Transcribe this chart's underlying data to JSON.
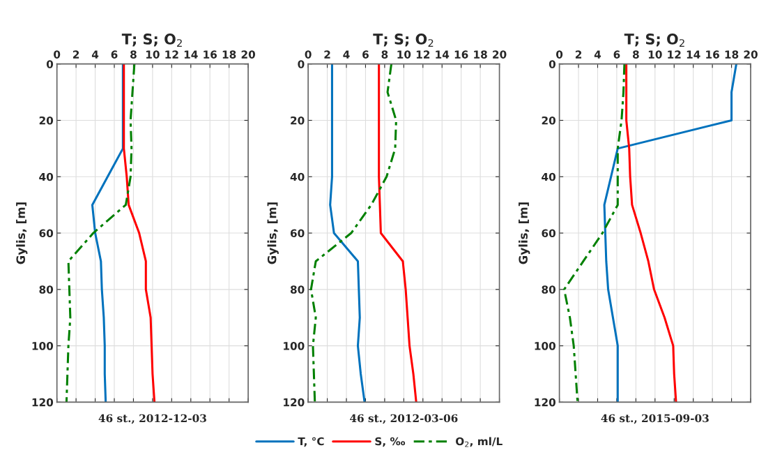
{
  "chart_data": [
    {
      "type": "line",
      "title": "46 st., 2012-12-03",
      "xlabel": "T; S; O$_{2}$",
      "ylabel": "Gylis, [m]",
      "xlim": [
        0,
        20
      ],
      "xticks": [
        0,
        2,
        4,
        6,
        8,
        10,
        12,
        14,
        16,
        18,
        20
      ],
      "ylim": [
        120,
        0
      ],
      "yticks": [
        0,
        20,
        40,
        60,
        80,
        100,
        120
      ],
      "grid": true,
      "legend": "bottom",
      "series": [
        {
          "name": "T, °C",
          "color": "#0072bd",
          "line_style": "solid",
          "x": [
            6.9,
            6.9,
            6.9,
            6.9,
            5.3,
            3.7,
            4.0,
            4.6,
            4.7,
            4.9,
            5.0,
            5.0,
            5.1
          ],
          "values": [
            0,
            10,
            20,
            30,
            40,
            50,
            60,
            70,
            80,
            90,
            100,
            110,
            120
          ]
        },
        {
          "name": "S, ‰",
          "color": "#ff0000",
          "line_style": "solid",
          "x": [
            7.0,
            7.0,
            7.0,
            7.0,
            7.3,
            7.5,
            8.6,
            9.3,
            9.3,
            9.8,
            9.9,
            10.0,
            10.2
          ],
          "values": [
            0,
            10,
            20,
            30,
            40,
            50,
            60,
            70,
            80,
            90,
            100,
            110,
            120
          ]
        },
        {
          "name": "O$_{2}$, ml/L",
          "color": "#008000",
          "line_style": "dashed",
          "x": [
            8.1,
            7.9,
            7.7,
            7.8,
            7.7,
            7.2,
            3.8,
            1.2,
            1.3,
            1.4,
            1.2,
            1.1,
            1.0
          ],
          "values": [
            0,
            10,
            20,
            30,
            40,
            50,
            60,
            70,
            80,
            90,
            100,
            110,
            120
          ]
        }
      ]
    },
    {
      "type": "line",
      "title": "46 st., 2012-03-06",
      "xlabel": "T; S; O$_{2}$",
      "ylabel": "Gylis, [m]",
      "xlim": [
        0,
        20
      ],
      "xticks": [
        0,
        2,
        4,
        6,
        8,
        10,
        12,
        14,
        16,
        18,
        20
      ],
      "ylim": [
        120,
        0
      ],
      "yticks": [
        0,
        20,
        40,
        60,
        80,
        100,
        120
      ],
      "grid": true,
      "series": [
        {
          "color": "#0072bd",
          "line_style": "solid",
          "x": [
            2.5,
            2.5,
            2.5,
            2.5,
            2.5,
            2.3,
            2.7,
            5.2,
            5.3,
            5.4,
            5.2,
            5.5,
            5.9
          ],
          "values": [
            0,
            10,
            20,
            30,
            40,
            50,
            60,
            70,
            80,
            90,
            100,
            110,
            120
          ]
        },
        {
          "color": "#ff0000",
          "line_style": "solid",
          "x": [
            7.4,
            7.4,
            7.4,
            7.4,
            7.4,
            7.5,
            7.6,
            9.9,
            10.2,
            10.4,
            10.6,
            11.0,
            11.3
          ],
          "values": [
            0,
            10,
            20,
            30,
            40,
            50,
            60,
            70,
            80,
            90,
            100,
            110,
            120
          ]
        },
        {
          "color": "#008000",
          "line_style": "dashed",
          "x": [
            8.7,
            8.3,
            9.2,
            9.1,
            8.2,
            6.6,
            4.5,
            0.8,
            0.3,
            0.8,
            0.5,
            0.6,
            0.7
          ],
          "values": [
            0,
            10,
            20,
            30,
            40,
            50,
            60,
            70,
            80,
            90,
            100,
            110,
            120
          ]
        }
      ]
    },
    {
      "type": "line",
      "title": "46 st., 2015-09-03",
      "xlabel": "T; S; O$_{2}$",
      "ylabel": "Gylis, [m]",
      "xlim": [
        0,
        20
      ],
      "xticks": [
        0,
        2,
        4,
        6,
        8,
        10,
        12,
        14,
        16,
        18,
        20
      ],
      "ylim": [
        120,
        0
      ],
      "yticks": [
        0,
        20,
        40,
        60,
        80,
        100,
        120
      ],
      "grid": true,
      "series": [
        {
          "color": "#0072bd",
          "line_style": "solid",
          "x": [
            18.5,
            18.0,
            18.0,
            6.1,
            5.4,
            4.7,
            4.8,
            4.9,
            5.1,
            5.6,
            6.1,
            6.1,
            6.1
          ],
          "values": [
            0,
            10,
            20,
            30,
            40,
            50,
            60,
            70,
            80,
            90,
            100,
            110,
            120
          ]
        },
        {
          "color": "#ff0000",
          "line_style": "solid",
          "x": [
            7.0,
            7.0,
            7.0,
            7.3,
            7.4,
            7.6,
            8.5,
            9.3,
            9.9,
            11.0,
            11.9,
            12.0,
            12.2
          ],
          "values": [
            0,
            10,
            20,
            30,
            40,
            50,
            60,
            70,
            80,
            90,
            100,
            110,
            120
          ]
        },
        {
          "color": "#008000",
          "line_style": "dashed",
          "x": [
            6.8,
            6.7,
            6.5,
            6.1,
            6.1,
            6.1,
            4.5,
            2.5,
            0.5,
            1.1,
            1.5,
            1.7,
            1.9
          ],
          "values": [
            0,
            10,
            20,
            30,
            40,
            50,
            60,
            70,
            80,
            90,
            100,
            110,
            120
          ]
        }
      ]
    }
  ]
}
